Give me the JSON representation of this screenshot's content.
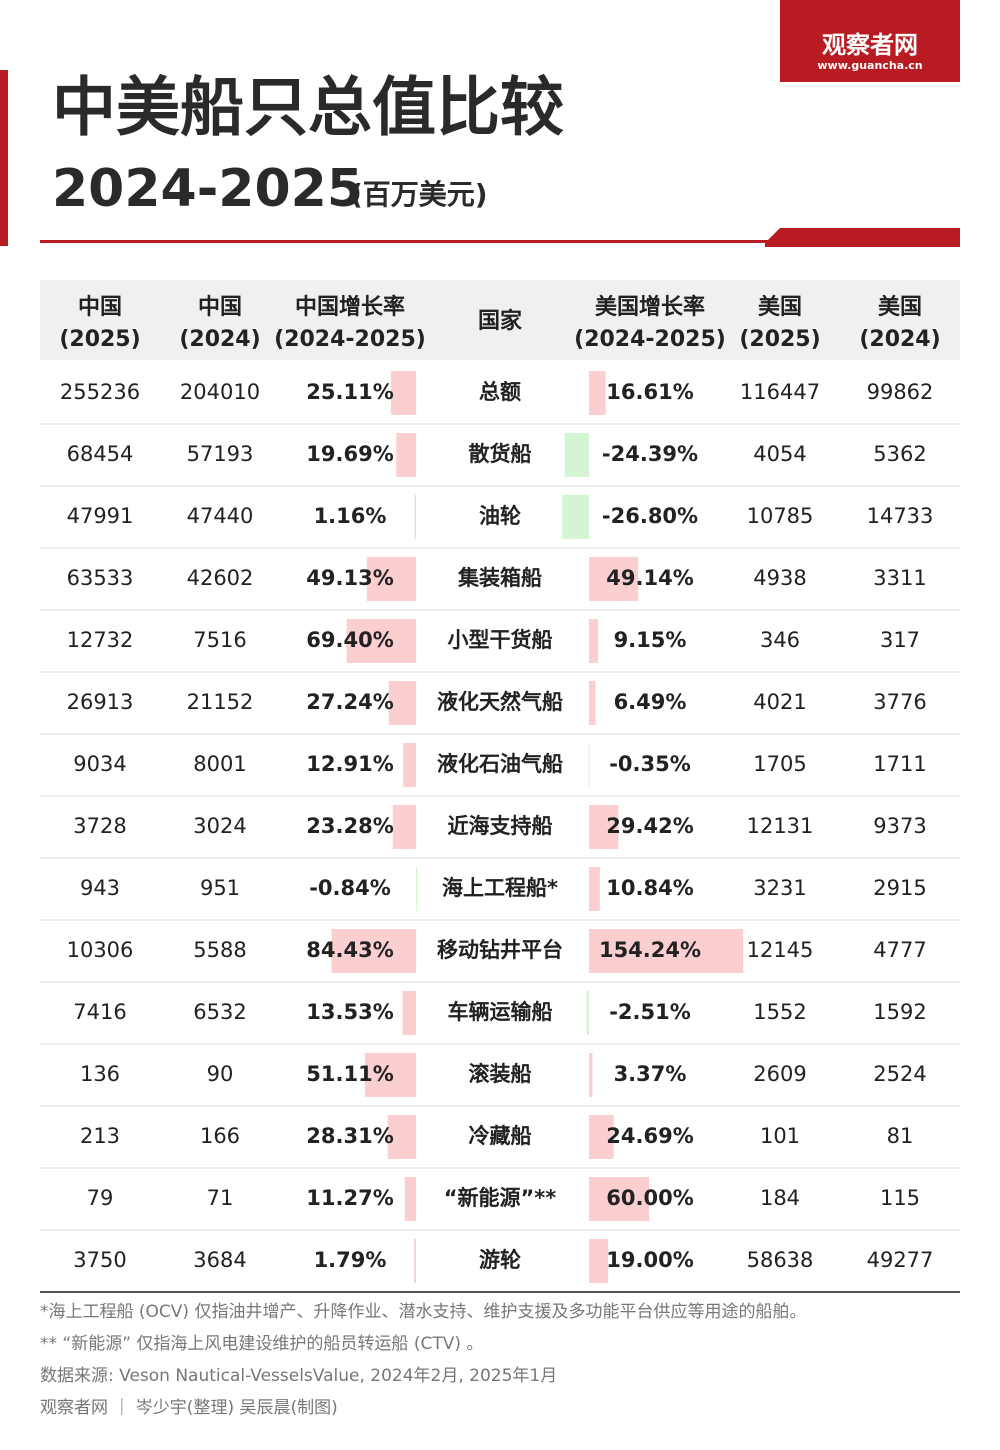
{
  "header": {
    "logo": "观察者网",
    "logo_url": "www.guancha.cn",
    "title": "中美船只总值比较",
    "subtitle_years": "2024-2025",
    "subtitle_unit": "(百万美元)"
  },
  "table": {
    "columns": [
      [
        "中国",
        "(2025)"
      ],
      [
        "中国",
        "(2024)"
      ],
      [
        "中国增长率",
        "(2024-2025)"
      ],
      [
        "国家"
      ],
      [
        "美国增长率",
        "(2024-2025)"
      ],
      [
        "美国",
        "(2025)"
      ],
      [
        "美国",
        "(2024)"
      ]
    ],
    "bar_colors": {
      "positive": "#fbcfd0",
      "negative": "#d4f5d4"
    },
    "rows": [
      [
        255236,
        204010,
        {
          "value": 25.11,
          "label": "25.11%"
        },
        "总额",
        {
          "value": 16.61,
          "label": "16.61%"
        },
        116447,
        99862
      ],
      [
        68454,
        57193,
        {
          "value": 19.69,
          "label": "19.69%"
        },
        "散货船",
        {
          "value": -24.39,
          "label": "-24.39%"
        },
        4054,
        5362
      ],
      [
        47991,
        47440,
        {
          "value": 1.16,
          "label": "1.16%"
        },
        "油轮",
        {
          "value": -26.8,
          "label": "-26.80%"
        },
        10785,
        14733
      ],
      [
        63533,
        42602,
        {
          "value": 49.13,
          "label": "49.13%"
        },
        "集装箱船",
        {
          "value": 49.14,
          "label": "49.14%"
        },
        4938,
        3311
      ],
      [
        12732,
        7516,
        {
          "value": 69.4,
          "label": "69.40%"
        },
        "小型干货船",
        {
          "value": 9.15,
          "label": "9.15%"
        },
        346,
        317
      ],
      [
        26913,
        21152,
        {
          "value": 27.24,
          "label": "27.24%"
        },
        "液化天然气船",
        {
          "value": 6.49,
          "label": "6.49%"
        },
        4021,
        3776
      ],
      [
        9034,
        8001,
        {
          "value": 12.91,
          "label": "12.91%"
        },
        "液化石油气船",
        {
          "value": -0.35,
          "label": "-0.35%"
        },
        1705,
        1711
      ],
      [
        3728,
        3024,
        {
          "value": 23.28,
          "label": "23.28%"
        },
        "近海支持船",
        {
          "value": 29.42,
          "label": "29.42%"
        },
        12131,
        9373
      ],
      [
        943,
        951,
        {
          "value": -0.84,
          "label": "-0.84%"
        },
        "海上工程船*",
        {
          "value": 10.84,
          "label": "10.84%"
        },
        3231,
        2915
      ],
      [
        10306,
        5588,
        {
          "value": 84.43,
          "label": "84.43%"
        },
        "移动钻井平台",
        {
          "value": 154.24,
          "label": "154.24%"
        },
        12145,
        4777
      ],
      [
        7416,
        6532,
        {
          "value": 13.53,
          "label": "13.53%"
        },
        "车辆运输船",
        {
          "value": -2.51,
          "label": "-2.51%"
        },
        1552,
        1592
      ],
      [
        136,
        90,
        {
          "value": 51.11,
          "label": "51.11%"
        },
        "滚装船",
        {
          "value": 3.37,
          "label": "3.37%"
        },
        2609,
        2524
      ],
      [
        213,
        166,
        {
          "value": 28.31,
          "label": "28.31%"
        },
        "冷藏船",
        {
          "value": 24.69,
          "label": "24.69%"
        },
        101,
        81
      ],
      [
        79,
        71,
        {
          "value": 11.27,
          "label": "11.27%"
        },
        "“新能源”**",
        {
          "value": 60.0,
          "label": "60.00%"
        },
        184,
        115
      ],
      [
        3750,
        3684,
        {
          "value": 1.79,
          "label": "1.79%"
        },
        "游轮",
        {
          "value": 19.0,
          "label": "19.00%"
        },
        58638,
        49277
      ]
    ]
  },
  "footnotes": [
    "*海上工程船 (OCV) 仅指油井增产、升降作业、潜水支持、维护支援及多功能平台供应等用途的船舶。",
    "** “新能源” 仅指海上风电建设维护的船员转运船 (CTV) 。",
    "数据来源: Veson Nautical-VesselsValue, 2024年2月, 2025年1月",
    "观察者网 ｜ 岑少宇(整理)  吴辰晨(制图)"
  ]
}
